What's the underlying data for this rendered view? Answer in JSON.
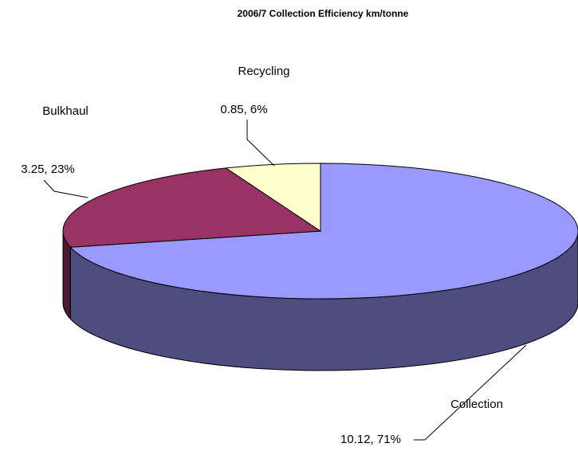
{
  "chart_data": {
    "type": "pie",
    "title": "2006/7 Collection Efficiency km/tonne",
    "categories": [
      "Collection",
      "Bulkhaul",
      "Recycling"
    ],
    "values": [
      10.12,
      3.25,
      0.85
    ],
    "value_labels": [
      "10.12, 71%",
      "3.25, 23%",
      "0.85, 6%"
    ],
    "colors": [
      "#9999ff",
      "#993366",
      "#ffffcc"
    ]
  }
}
